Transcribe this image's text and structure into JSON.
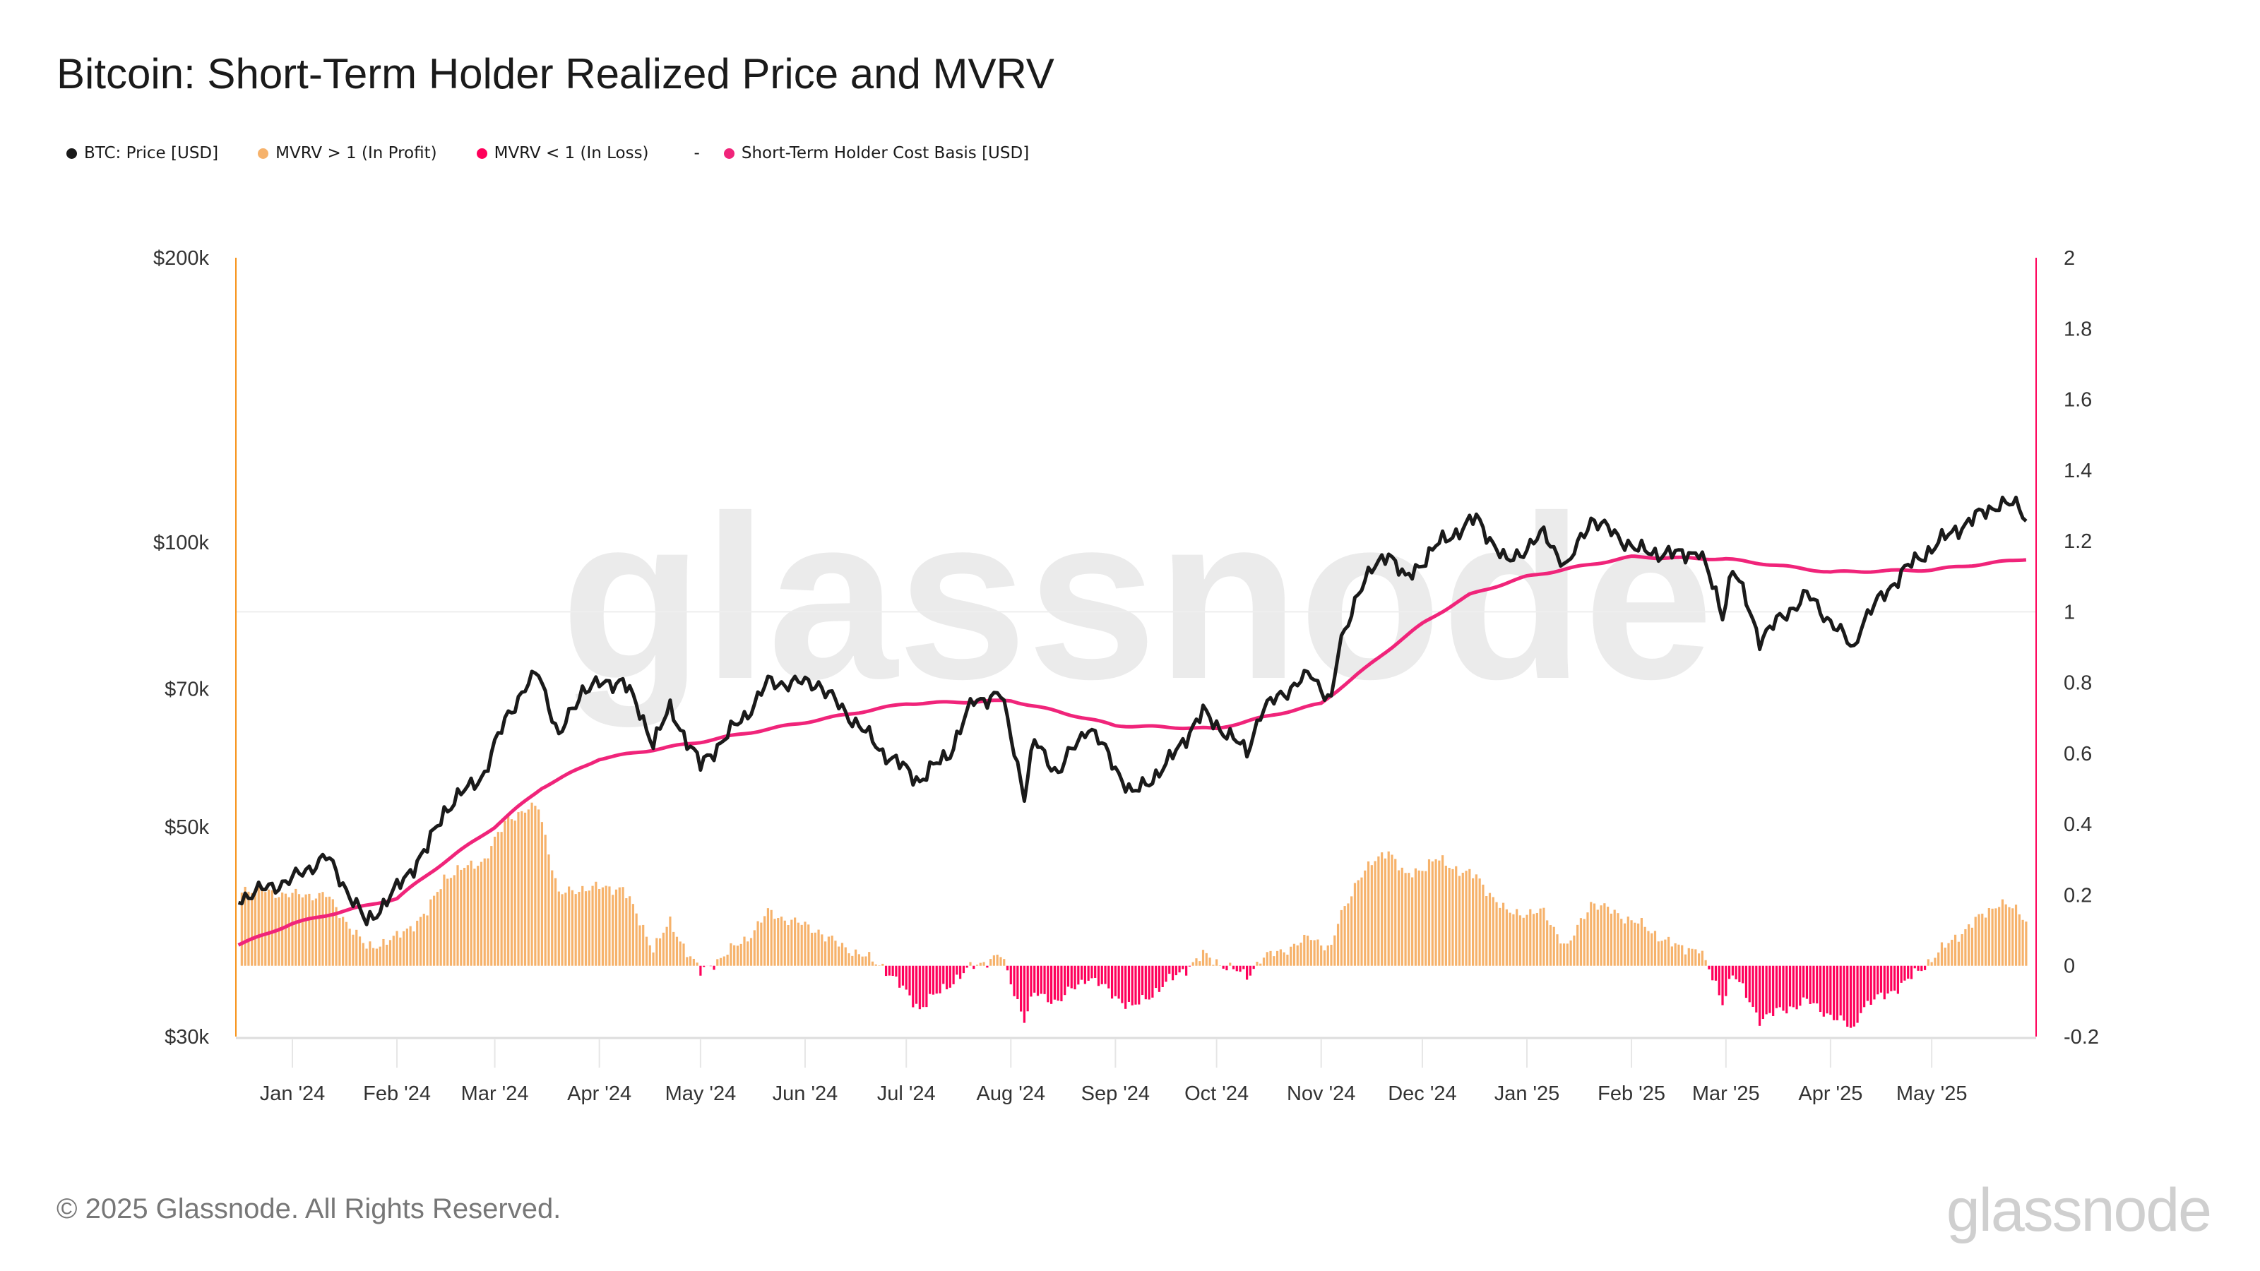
{
  "title": "Bitcoin: Short-Term Holder Realized Price and MVRV",
  "legend": [
    {
      "label": "BTC: Price [USD]",
      "color": "#1a1a1a"
    },
    {
      "label": "MVRV > 1 (In Profit)",
      "color": "#f6b26b"
    },
    {
      "label": "MVRV < 1 (In Loss)",
      "color": "#ff005a"
    },
    {
      "label": "Short-Term Holder Cost Basis [USD]",
      "color": "#f0247a"
    }
  ],
  "legend_separator": "-",
  "footer": "© 2025 Glassnode. All Rights Reserved.",
  "watermark": "glassnode",
  "logo": "glassnode",
  "chart_data": {
    "type": "line+bar",
    "title": "Bitcoin: Short-Term Holder Realized Price and MVRV",
    "x_unit": "days since 2024-01-01",
    "x_range": [
      -16,
      514
    ],
    "x_ticks": [
      {
        "day": 0,
        "label": "Jan '24"
      },
      {
        "day": 31,
        "label": "Feb '24"
      },
      {
        "day": 60,
        "label": "Mar '24"
      },
      {
        "day": 91,
        "label": "Apr '24"
      },
      {
        "day": 121,
        "label": "May '24"
      },
      {
        "day": 152,
        "label": "Jun '24"
      },
      {
        "day": 182,
        "label": "Jul '24"
      },
      {
        "day": 213,
        "label": "Aug '24"
      },
      {
        "day": 244,
        "label": "Sep '24"
      },
      {
        "day": 274,
        "label": "Oct '24"
      },
      {
        "day": 305,
        "label": "Nov '24"
      },
      {
        "day": 335,
        "label": "Dec '24"
      },
      {
        "day": 366,
        "label": "Jan '25"
      },
      {
        "day": 397,
        "label": "Feb '25"
      },
      {
        "day": 425,
        "label": "Mar '25"
      },
      {
        "day": 456,
        "label": "Apr '25"
      },
      {
        "day": 486,
        "label": "May '25"
      }
    ],
    "left_axis": {
      "scale": "log",
      "range": [
        30000,
        200000
      ],
      "ticks": [
        {
          "v": 200000,
          "label": "$200k"
        },
        {
          "v": 100000,
          "label": "$100k"
        },
        {
          "v": 70000,
          "label": "$70k"
        },
        {
          "v": 50000,
          "label": "$50k"
        },
        {
          "v": 30000,
          "label": "$30k"
        }
      ]
    },
    "right_axis": {
      "scale": "linear",
      "range": [
        -0.2,
        2
      ],
      "ticks": [
        "2",
        "1.8",
        "1.6",
        "1.4",
        "1.2",
        "1",
        "0.8",
        "0.6",
        "0.4",
        "0.2",
        "0",
        "-0.2"
      ]
    },
    "price": [
      [
        -16,
        42000
      ],
      [
        0,
        44000
      ],
      [
        10,
        46500
      ],
      [
        22,
        39500
      ],
      [
        31,
        43000
      ],
      [
        40,
        47500
      ],
      [
        45,
        52000
      ],
      [
        57,
        57000
      ],
      [
        64,
        66000
      ],
      [
        73,
        73000
      ],
      [
        79,
        62000
      ],
      [
        86,
        70000
      ],
      [
        98,
        71500
      ],
      [
        107,
        61500
      ],
      [
        112,
        66500
      ],
      [
        121,
        58000
      ],
      [
        135,
        66000
      ],
      [
        141,
        71000
      ],
      [
        156,
        71000
      ],
      [
        158,
        69500
      ],
      [
        175,
        60000
      ],
      [
        186,
        56000
      ],
      [
        195,
        60000
      ],
      [
        202,
        68000
      ],
      [
        210,
        69000
      ],
      [
        217,
        54000
      ],
      [
        220,
        61500
      ],
      [
        227,
        57000
      ],
      [
        236,
        64000
      ],
      [
        249,
        54000
      ],
      [
        259,
        58000
      ],
      [
        270,
        66000
      ],
      [
        283,
        60000
      ],
      [
        287,
        66000
      ],
      [
        293,
        69000
      ],
      [
        302,
        72500
      ],
      [
        308,
        68000
      ],
      [
        310,
        76000
      ],
      [
        316,
        89000
      ],
      [
        325,
        98000
      ],
      [
        330,
        91000
      ],
      [
        339,
        99000
      ],
      [
        351,
        106000
      ],
      [
        360,
        95000
      ],
      [
        371,
        102000
      ],
      [
        378,
        94000
      ],
      [
        385,
        106000
      ],
      [
        399,
        98000
      ],
      [
        411,
        97000
      ],
      [
        417,
        98000
      ],
      [
        424,
        84000
      ],
      [
        427,
        94000
      ],
      [
        435,
        79000
      ],
      [
        449,
        88000
      ],
      [
        463,
        77000
      ],
      [
        465,
        82000
      ],
      [
        478,
        93500
      ],
      [
        493,
        103000
      ],
      [
        506,
        110000
      ],
      [
        512,
        109000
      ],
      [
        514,
        106000
      ]
    ],
    "sth_cost_basis": [
      [
        -16,
        37500
      ],
      [
        0,
        39500
      ],
      [
        31,
        42000
      ],
      [
        60,
        50000
      ],
      [
        74,
        55000
      ],
      [
        91,
        59000
      ],
      [
        121,
        61500
      ],
      [
        152,
        64500
      ],
      [
        182,
        67500
      ],
      [
        213,
        68000
      ],
      [
        244,
        64000
      ],
      [
        274,
        63500
      ],
      [
        305,
        67500
      ],
      [
        319,
        74000
      ],
      [
        335,
        82000
      ],
      [
        349,
        88000
      ],
      [
        366,
        92000
      ],
      [
        397,
        96500
      ],
      [
        425,
        96000
      ],
      [
        456,
        93000
      ],
      [
        486,
        93500
      ],
      [
        514,
        96000
      ]
    ],
    "mvrv_minus_1": [
      [
        -16,
        0.22
      ],
      [
        0,
        0.2
      ],
      [
        10,
        0.2
      ],
      [
        22,
        0.05
      ],
      [
        31,
        0.08
      ],
      [
        40,
        0.15
      ],
      [
        45,
        0.25
      ],
      [
        57,
        0.3
      ],
      [
        64,
        0.42
      ],
      [
        73,
        0.45
      ],
      [
        79,
        0.2
      ],
      [
        86,
        0.22
      ],
      [
        98,
        0.22
      ],
      [
        107,
        0.05
      ],
      [
        112,
        0.12
      ],
      [
        121,
        -0.02
      ],
      [
        135,
        0.08
      ],
      [
        141,
        0.15
      ],
      [
        156,
        0.1
      ],
      [
        158,
        0.08
      ],
      [
        175,
        0.0
      ],
      [
        186,
        -0.12
      ],
      [
        195,
        -0.05
      ],
      [
        202,
        0.0
      ],
      [
        210,
        0.03
      ],
      [
        217,
        -0.15
      ],
      [
        220,
        -0.08
      ],
      [
        227,
        -0.1
      ],
      [
        236,
        -0.03
      ],
      [
        249,
        -0.12
      ],
      [
        259,
        -0.05
      ],
      [
        270,
        0.03
      ],
      [
        283,
        -0.03
      ],
      [
        287,
        0.02
      ],
      [
        293,
        0.04
      ],
      [
        302,
        0.08
      ],
      [
        308,
        0.05
      ],
      [
        310,
        0.12
      ],
      [
        316,
        0.25
      ],
      [
        325,
        0.33
      ],
      [
        330,
        0.25
      ],
      [
        339,
        0.3
      ],
      [
        351,
        0.25
      ],
      [
        360,
        0.15
      ],
      [
        371,
        0.15
      ],
      [
        378,
        0.05
      ],
      [
        385,
        0.18
      ],
      [
        399,
        0.12
      ],
      [
        411,
        0.05
      ],
      [
        417,
        0.05
      ],
      [
        424,
        -0.1
      ],
      [
        427,
        -0.02
      ],
      [
        435,
        -0.15
      ],
      [
        449,
        -0.1
      ],
      [
        463,
        -0.18
      ],
      [
        465,
        -0.12
      ],
      [
        478,
        -0.05
      ],
      [
        493,
        0.08
      ],
      [
        506,
        0.18
      ],
      [
        512,
        0.15
      ],
      [
        514,
        0.13
      ]
    ]
  }
}
